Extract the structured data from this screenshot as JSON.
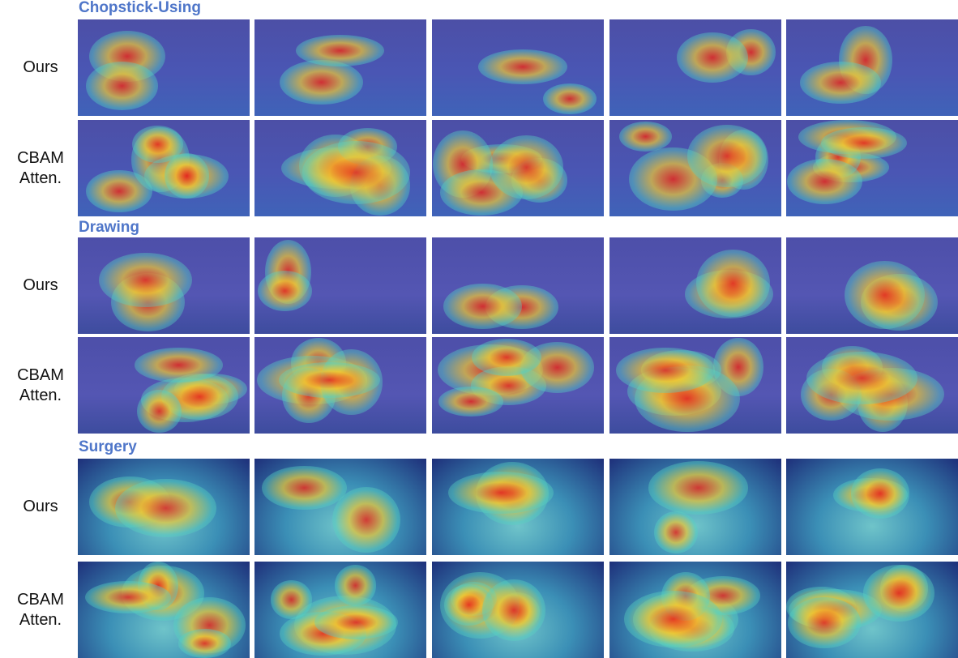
{
  "sections": [
    {
      "title": "Chopstick-Using",
      "rows": [
        {
          "label": [
            "Ours"
          ]
        },
        {
          "label": [
            "CBAM",
            "Atten."
          ]
        }
      ]
    },
    {
      "title": "Drawing",
      "rows": [
        {
          "label": [
            "Ours"
          ]
        },
        {
          "label": [
            "CBAM",
            "Atten."
          ]
        }
      ]
    },
    {
      "title": "Surgery",
      "rows": [
        {
          "label": [
            "Ours"
          ]
        },
        {
          "label": [
            "CBAM",
            "Atten."
          ]
        }
      ]
    }
  ]
}
